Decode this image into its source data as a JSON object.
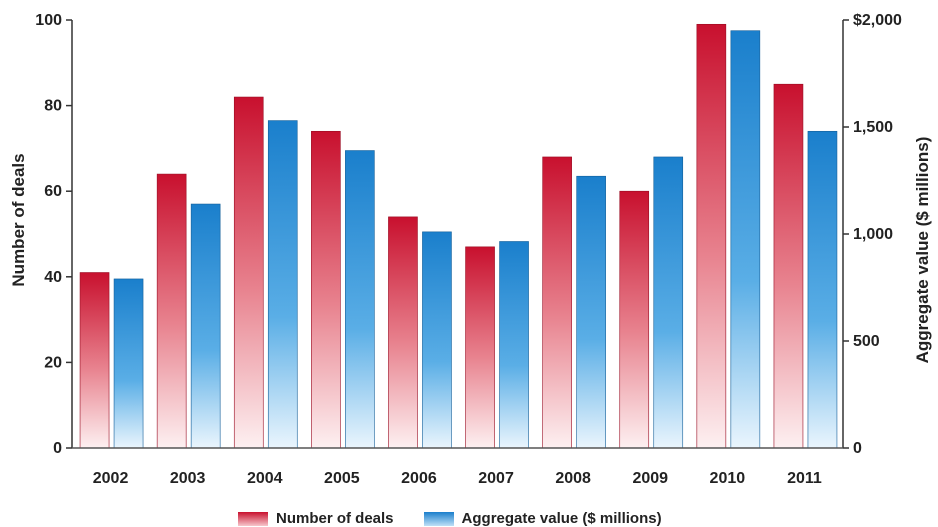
{
  "chart_data": {
    "type": "bar",
    "categories": [
      "2002",
      "2003",
      "2004",
      "2005",
      "2006",
      "2007",
      "2008",
      "2009",
      "2010",
      "2011"
    ],
    "series": [
      {
        "name": "Number of deals",
        "axis": "left",
        "values": [
          41,
          64,
          82,
          74,
          54,
          47,
          68,
          60,
          99,
          85
        ],
        "color": "#c8102e"
      },
      {
        "name": "Aggregate value ($ millions)",
        "axis": "right",
        "values": [
          790,
          1140,
          1530,
          1390,
          1010,
          965,
          1270,
          1360,
          1950,
          1480
        ],
        "color": "#1a7fcc"
      }
    ],
    "ylabel_left": "Number of deals",
    "ylabel_right": "Aggregate value ($ millions)",
    "ylim_left": [
      0,
      100
    ],
    "ylim_right": [
      0,
      2000
    ],
    "yticks_left": [
      "0",
      "20",
      "40",
      "60",
      "80",
      "100"
    ],
    "yticks_right": [
      "0",
      "500",
      "1,000",
      "1,500",
      "$2,000"
    ],
    "grid": false,
    "legend_position": "bottom"
  },
  "legend": {
    "deals_label": "Number of deals",
    "value_label": "Aggregate value ($ millions)"
  }
}
